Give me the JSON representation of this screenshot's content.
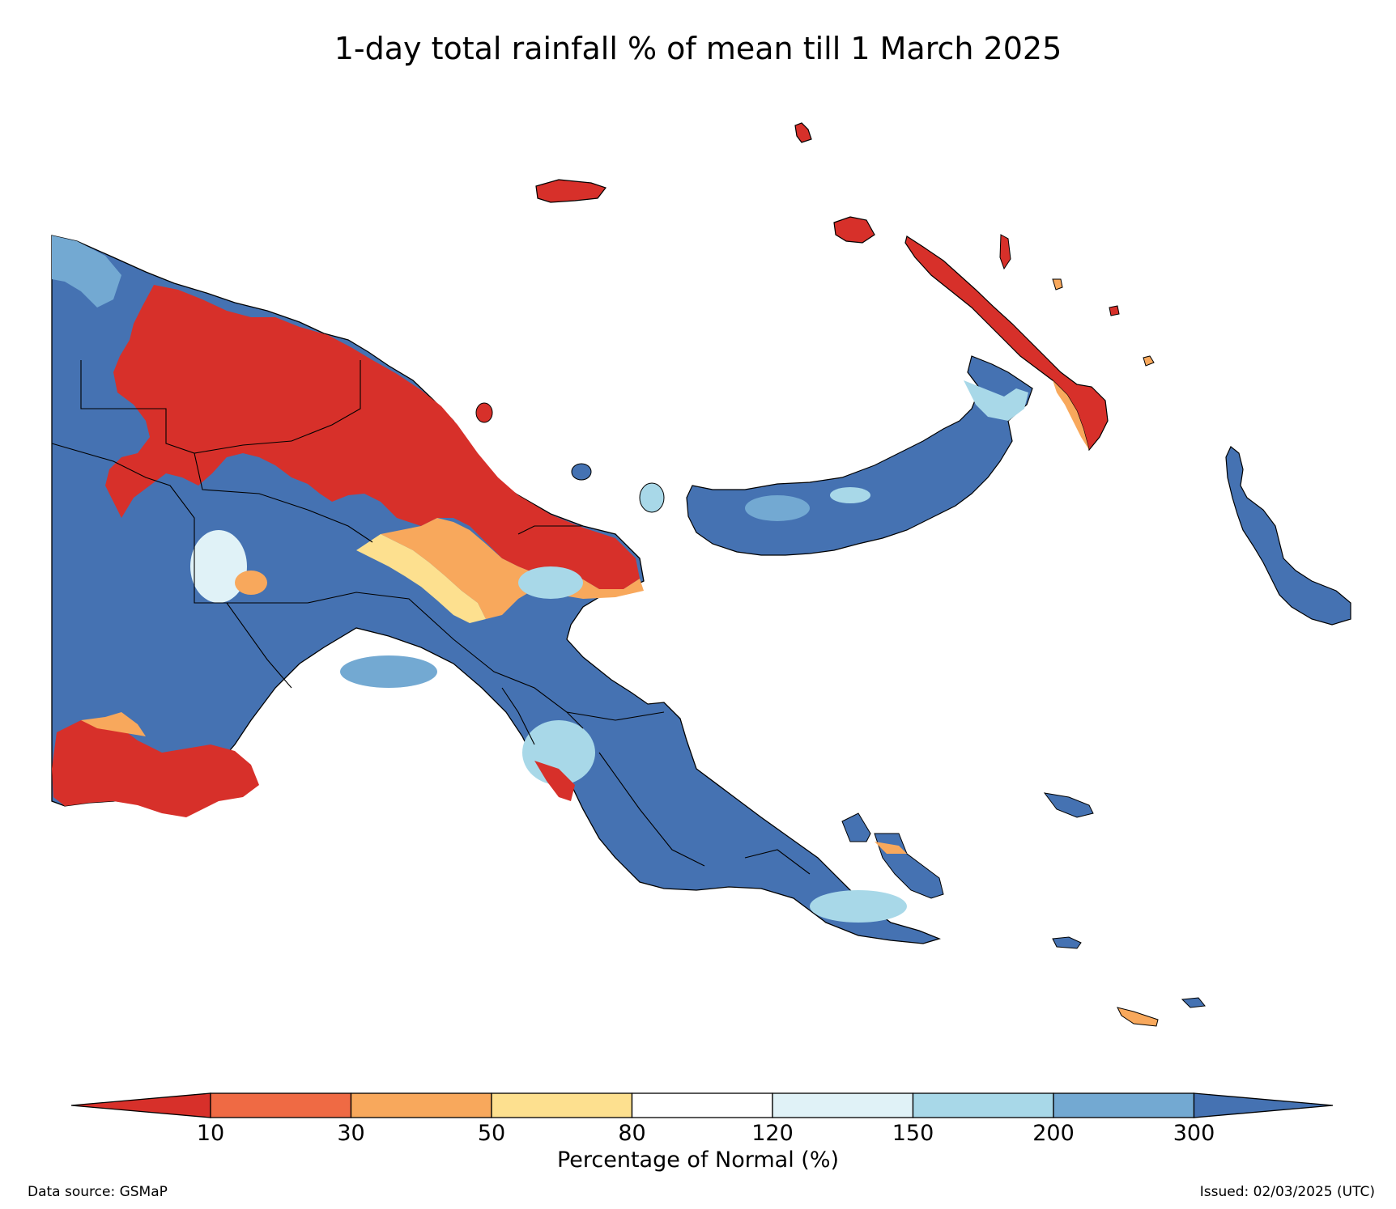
{
  "title": "1-day total rainfall % of mean till 1 March 2025",
  "legend": {
    "title": "Percentage of Normal (%)",
    "ticks": [
      "10",
      "30",
      "50",
      "80",
      "120",
      "150",
      "200",
      "300"
    ],
    "colors": [
      "#d7302a",
      "#ef6a44",
      "#f8a85c",
      "#fde08f",
      "#ffffff",
      "#e0f2f7",
      "#a8d8e8",
      "#73a9d2",
      "#4572b2"
    ]
  },
  "footer": {
    "source": "Data source: GSMaP",
    "issued": "Issued: 02/03/2025 (UTC)"
  },
  "colors": {
    "very_low": "#d7302a",
    "low": "#ef6a44",
    "below": "#f8a85c",
    "slightly_below": "#fde08f",
    "normal": "#ffffff",
    "slightly_above": "#e0f2f7",
    "above": "#a8d8e8",
    "high": "#73a9d2",
    "very_high": "#4572b2"
  }
}
